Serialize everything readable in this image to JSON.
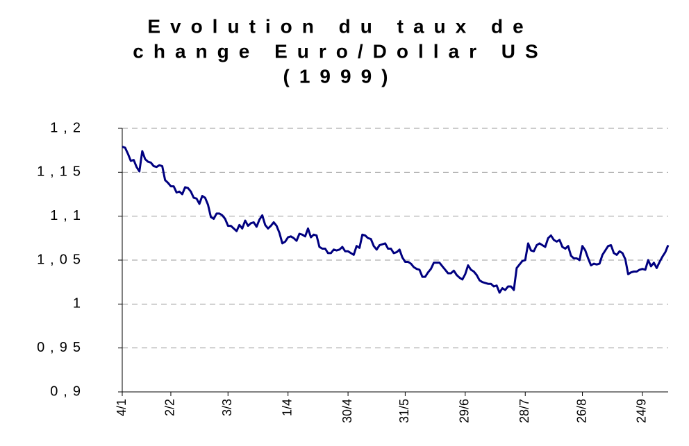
{
  "chart_data": {
    "type": "line",
    "title": [
      "Evolution du taux de",
      "change Euro/Dollar US",
      "(1999)"
    ],
    "color": "#000080",
    "grid": true,
    "ylim": [
      0.9,
      1.2
    ],
    "yticks": [
      {
        "value": 0.9,
        "label": "0,9"
      },
      {
        "value": 0.95,
        "label": "0,95"
      },
      1,
      {
        "value": 1.05,
        "label": "1,05"
      },
      {
        "value": 1.1,
        "label": "1,1"
      },
      {
        "value": 1.15,
        "label": "1,15"
      },
      {
        "value": 1.2,
        "label": "1,2"
      }
    ],
    "categories": [
      "4/1",
      null,
      null,
      null,
      null,
      null,
      null,
      null,
      null,
      null,
      null,
      null,
      null,
      null,
      null,
      null,
      null,
      "2/2",
      null,
      null,
      null,
      null,
      null,
      null,
      null,
      null,
      null,
      null,
      null,
      null,
      null,
      null,
      null,
      null,
      null,
      null,
      null,
      "3/3",
      null,
      null,
      null,
      null,
      null,
      null,
      null,
      null,
      null,
      null,
      null,
      null,
      null,
      null,
      null,
      null,
      null,
      null,
      null,
      null,
      "1/4",
      null,
      null,
      null,
      null,
      null,
      null,
      null,
      null,
      null,
      null,
      null,
      null,
      null,
      null,
      null,
      null,
      null,
      null,
      null,
      null,
      "30/4",
      null,
      null,
      null,
      null,
      null,
      null,
      null,
      null,
      null,
      null,
      null,
      null,
      null,
      null,
      null,
      null,
      null,
      null,
      null,
      "31/5",
      null,
      null,
      null,
      null,
      null,
      null,
      null,
      null,
      null,
      null,
      null,
      null,
      null,
      null,
      null,
      null,
      null,
      null,
      null,
      null,
      "29/6",
      null,
      null,
      null,
      null,
      null,
      null,
      null,
      null,
      null,
      null,
      null,
      null,
      null,
      null,
      null,
      null,
      null,
      null,
      null,
      null,
      "28/7",
      null,
      null,
      null,
      null,
      null,
      null,
      null,
      null,
      null,
      null,
      null,
      null,
      null,
      null,
      null,
      null,
      null,
      null,
      null,
      "26/8",
      null,
      null,
      null,
      null,
      null,
      null,
      null,
      null,
      null,
      null,
      null,
      null,
      null,
      null,
      null,
      null,
      null,
      null,
      null,
      null,
      "24/9",
      null,
      null,
      null,
      null,
      null,
      null,
      null,
      null,
      null
    ],
    "values": [
      1.179,
      1.178,
      1.171,
      1.163,
      1.164,
      1.156,
      1.151,
      1.174,
      1.165,
      1.162,
      1.161,
      1.157,
      1.156,
      1.158,
      1.157,
      1.141,
      1.138,
      1.134,
      1.134,
      1.127,
      1.128,
      1.125,
      1.133,
      1.132,
      1.128,
      1.121,
      1.12,
      1.114,
      1.123,
      1.121,
      1.113,
      1.099,
      1.097,
      1.103,
      1.103,
      1.101,
      1.097,
      1.089,
      1.089,
      1.086,
      1.083,
      1.09,
      1.086,
      1.095,
      1.089,
      1.092,
      1.093,
      1.088,
      1.096,
      1.101,
      1.09,
      1.086,
      1.089,
      1.093,
      1.089,
      1.081,
      1.069,
      1.071,
      1.076,
      1.077,
      1.075,
      1.072,
      1.08,
      1.079,
      1.077,
      1.086,
      1.076,
      1.079,
      1.078,
      1.065,
      1.063,
      1.063,
      1.058,
      1.058,
      1.062,
      1.061,
      1.062,
      1.065,
      1.06,
      1.06,
      1.058,
      1.056,
      1.066,
      1.064,
      1.079,
      1.078,
      1.075,
      1.074,
      1.066,
      1.062,
      1.067,
      1.068,
      1.069,
      1.063,
      1.063,
      1.058,
      1.059,
      1.062,
      1.053,
      1.048,
      1.048,
      1.046,
      1.042,
      1.04,
      1.039,
      1.031,
      1.031,
      1.036,
      1.04,
      1.047,
      1.047,
      1.047,
      1.043,
      1.039,
      1.035,
      1.035,
      1.038,
      1.033,
      1.03,
      1.028,
      1.034,
      1.044,
      1.039,
      1.037,
      1.033,
      1.027,
      1.025,
      1.024,
      1.023,
      1.023,
      1.02,
      1.021,
      1.013,
      1.018,
      1.016,
      1.02,
      1.02,
      1.016,
      1.041,
      1.045,
      1.049,
      1.05,
      1.069,
      1.061,
      1.06,
      1.067,
      1.069,
      1.067,
      1.065,
      1.075,
      1.078,
      1.073,
      1.071,
      1.073,
      1.065,
      1.063,
      1.066,
      1.055,
      1.052,
      1.052,
      1.05,
      1.066,
      1.061,
      1.052,
      1.044,
      1.046,
      1.045,
      1.046,
      1.056,
      1.061,
      1.066,
      1.067,
      1.058,
      1.056,
      1.06,
      1.058,
      1.051,
      1.034,
      1.036,
      1.037,
      1.037,
      1.039,
      1.04,
      1.039,
      1.05,
      1.043,
      1.047,
      1.041,
      1.048,
      1.054,
      1.059,
      1.067
    ]
  }
}
